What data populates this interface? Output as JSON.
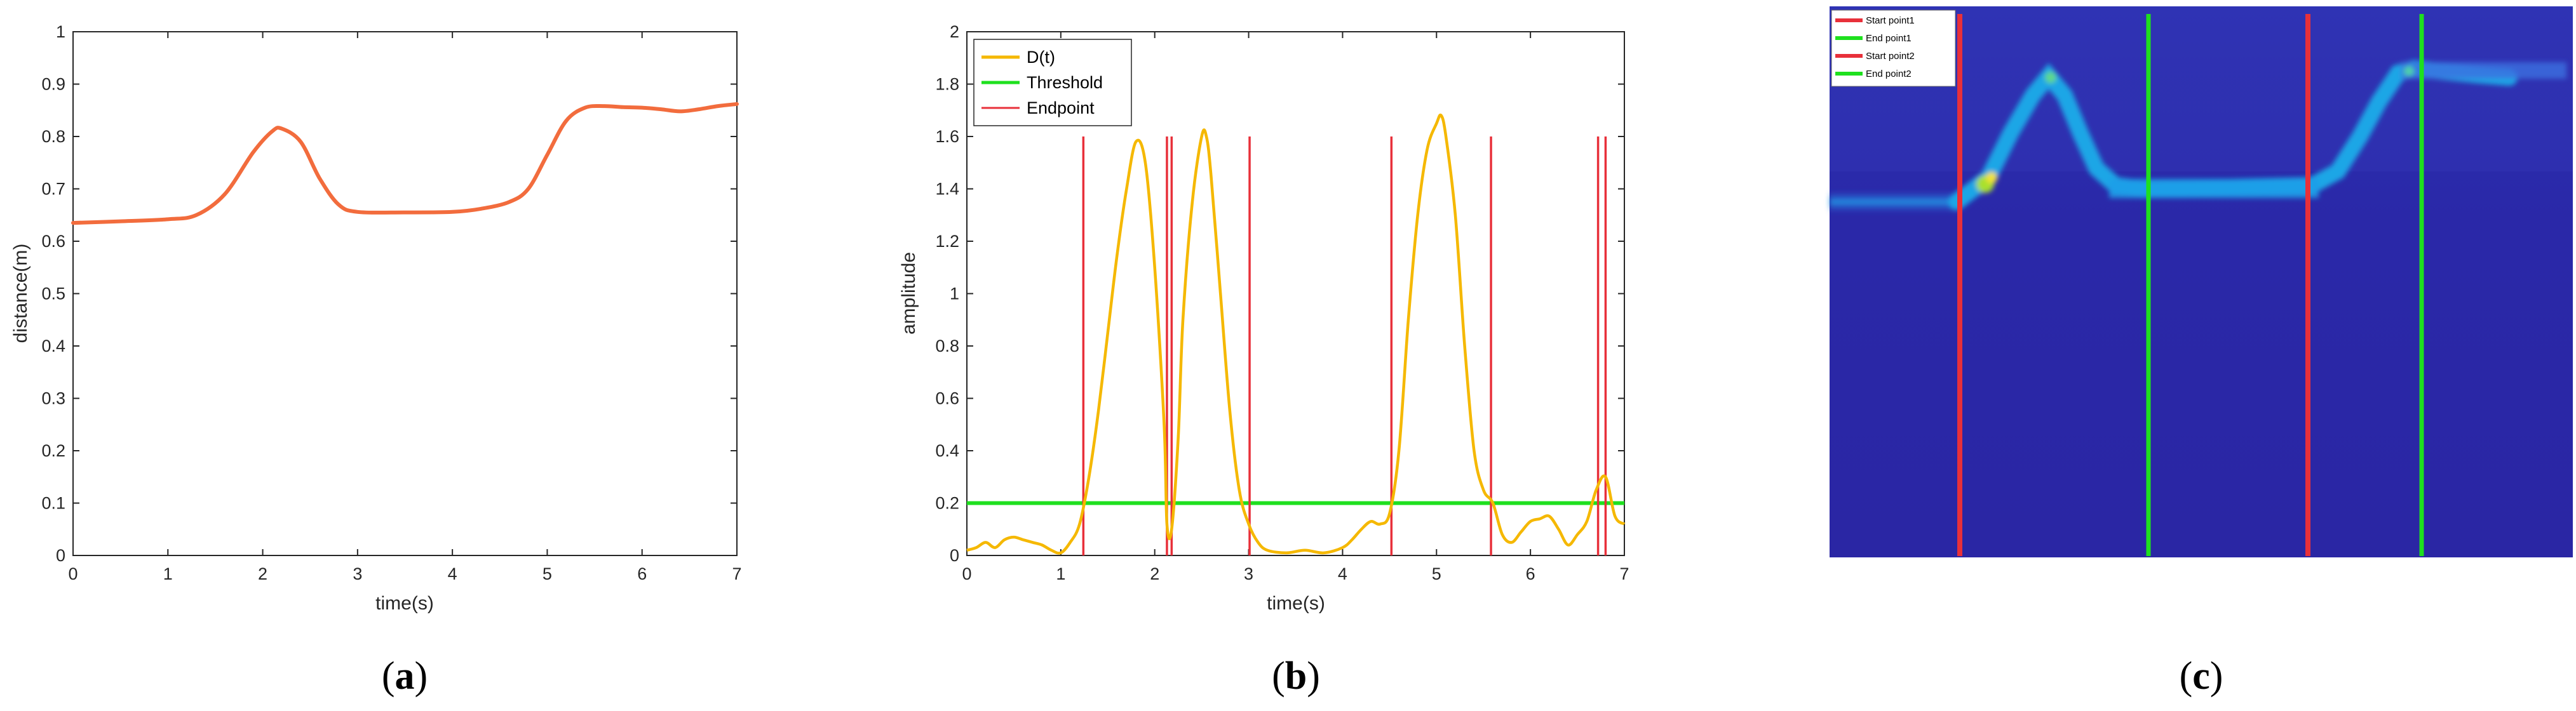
{
  "chart_data": [
    {
      "type": "line",
      "panel": "a",
      "xlabel": "time(s)",
      "ylabel": "distance(m)",
      "xlim": [
        0,
        7
      ],
      "ylim": [
        0,
        1
      ],
      "xticks": [
        "0",
        "1",
        "2",
        "3",
        "4",
        "5",
        "6",
        "7"
      ],
      "yticks": [
        "0",
        "0.1",
        "0.2",
        "0.3",
        "0.4",
        "0.5",
        "0.6",
        "0.7",
        "0.8",
        "0.9",
        "1"
      ],
      "color": "#f26c3d",
      "series": [
        {
          "name": "distance",
          "x": [
            0,
            0.5,
            1.0,
            1.3,
            1.6,
            1.9,
            2.1,
            2.2,
            2.4,
            2.6,
            2.8,
            3.0,
            3.5,
            4.0,
            4.3,
            4.6,
            4.8,
            5.0,
            5.2,
            5.4,
            5.6,
            5.8,
            6.0,
            6.2,
            6.4,
            6.6,
            6.8,
            7.0
          ],
          "y": [
            0.635,
            0.638,
            0.642,
            0.65,
            0.69,
            0.77,
            0.81,
            0.815,
            0.79,
            0.72,
            0.67,
            0.656,
            0.655,
            0.656,
            0.662,
            0.675,
            0.7,
            0.765,
            0.83,
            0.855,
            0.858,
            0.856,
            0.855,
            0.852,
            0.848,
            0.852,
            0.858,
            0.862
          ]
        }
      ],
      "caption": {
        "open": "(",
        "letter": "a",
        "close": ")"
      }
    },
    {
      "type": "line",
      "panel": "b",
      "xlabel": "time(s)",
      "ylabel": "amplitude",
      "xlim": [
        0,
        7
      ],
      "ylim": [
        0,
        2
      ],
      "xticks": [
        "0",
        "1",
        "2",
        "3",
        "4",
        "5",
        "6",
        "7"
      ],
      "yticks": [
        "0",
        "0.2",
        "0.4",
        "0.6",
        "0.8",
        "1",
        "1.2",
        "1.4",
        "1.6",
        "1.8",
        "2"
      ],
      "legend": [
        "D(t)",
        "Threshold",
        "Endpoint"
      ],
      "colors": {
        "dt": "#f5b800",
        "threshold": "#1ee01e",
        "endpoint": "#e8303a"
      },
      "threshold": 0.2,
      "endpoints": [
        1.24,
        2.13,
        2.18,
        3.01,
        4.52,
        5.58,
        6.72,
        6.8
      ],
      "endpoint_height": 1.6,
      "series": [
        {
          "name": "D(t)",
          "x": [
            0,
            0.1,
            0.2,
            0.3,
            0.4,
            0.5,
            0.6,
            0.7,
            0.8,
            0.9,
            1.0,
            1.1,
            1.2,
            1.3,
            1.4,
            1.5,
            1.6,
            1.7,
            1.8,
            1.9,
            2.0,
            2.1,
            2.13,
            2.18,
            2.25,
            2.3,
            2.4,
            2.5,
            2.55,
            2.6,
            2.7,
            2.8,
            2.9,
            3.0,
            3.1,
            3.2,
            3.4,
            3.6,
            3.8,
            4.0,
            4.1,
            4.2,
            4.3,
            4.4,
            4.5,
            4.6,
            4.7,
            4.8,
            4.9,
            5.0,
            5.05,
            5.1,
            5.2,
            5.3,
            5.4,
            5.5,
            5.6,
            5.7,
            5.8,
            5.9,
            6.0,
            6.1,
            6.2,
            6.3,
            6.4,
            6.5,
            6.6,
            6.7,
            6.8,
            6.9,
            7.0
          ],
          "y": [
            0.02,
            0.03,
            0.05,
            0.03,
            0.06,
            0.07,
            0.06,
            0.05,
            0.04,
            0.02,
            0.01,
            0.05,
            0.12,
            0.3,
            0.55,
            0.85,
            1.15,
            1.4,
            1.58,
            1.5,
            1.1,
            0.5,
            0.12,
            0.1,
            0.45,
            0.9,
            1.35,
            1.6,
            1.6,
            1.45,
            1.0,
            0.55,
            0.25,
            0.12,
            0.05,
            0.02,
            0.01,
            0.02,
            0.01,
            0.03,
            0.06,
            0.1,
            0.13,
            0.12,
            0.16,
            0.4,
            0.9,
            1.3,
            1.55,
            1.65,
            1.68,
            1.6,
            1.3,
            0.8,
            0.4,
            0.25,
            0.2,
            0.08,
            0.05,
            0.09,
            0.13,
            0.14,
            0.15,
            0.1,
            0.04,
            0.08,
            0.13,
            0.25,
            0.3,
            0.15,
            0.12
          ]
        }
      ],
      "caption": {
        "open": "(",
        "letter": "b",
        "close": ")"
      }
    },
    {
      "type": "heatmap",
      "panel": "c",
      "legend": [
        "Start point1",
        "End point1",
        "Start point2",
        "End point2"
      ],
      "colors": {
        "background": "#2a26a6",
        "start": "#e8303a",
        "end": "#1ee01e"
      },
      "caption": {
        "open": "(",
        "letter": "c",
        "close": ")"
      }
    }
  ]
}
